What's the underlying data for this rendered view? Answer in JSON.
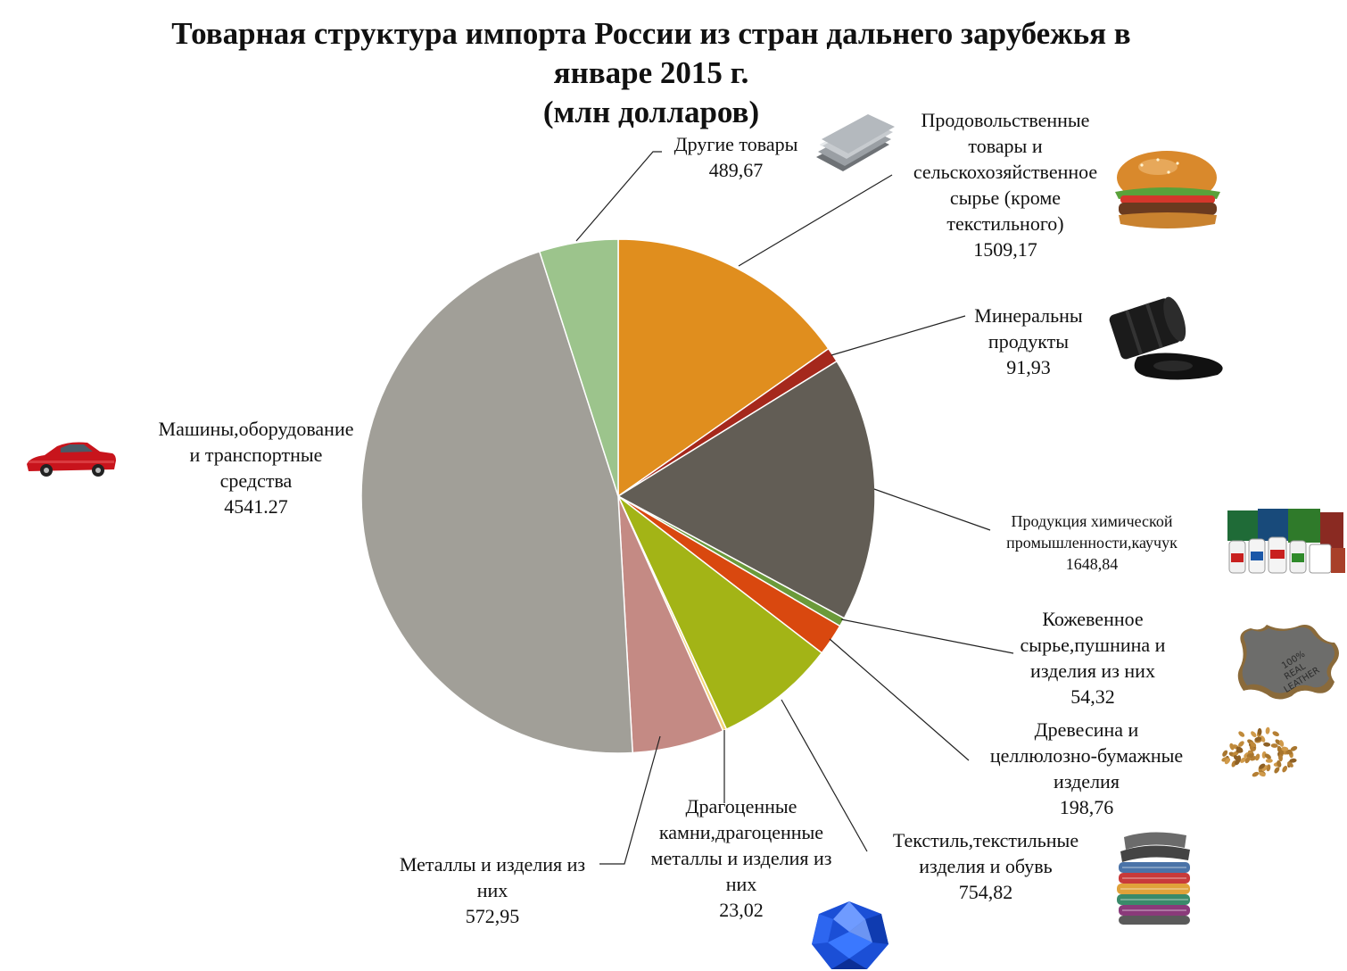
{
  "title": {
    "line1": "Товарная структура импорта России из стран дальнего зарубежья  в",
    "line2": "январе 2015 г.",
    "line3": "(млн долларов)"
  },
  "chart_data": {
    "type": "pie",
    "start_angle_deg": 0,
    "direction": "clockwise",
    "slices": [
      {
        "label_lines": [
          "Продовольственные",
          "товары и",
          "сельскохозяйственное",
          "сырье (кроме",
          "текстильного)"
        ],
        "value": 1509.17,
        "value_text": "1509,17",
        "color": "#E08E1E",
        "icon": "burger-icon"
      },
      {
        "label_lines": [
          "Минеральны",
          "продукты"
        ],
        "value": 91.93,
        "value_text": "91,93",
        "color": "#A5281C",
        "icon": "oil-barrel-icon"
      },
      {
        "label_lines": [
          "Продукция химической",
          "промышленности,каучук"
        ],
        "value": 1648.84,
        "value_text": "1648,84",
        "color": "#625D55",
        "icon": "chemical-bottles-icon"
      },
      {
        "label_lines": [
          "Кожевенное",
          "сырье,пушнина и",
          "изделия из них"
        ],
        "value": 54.32,
        "value_text": "54,32",
        "color": "#6B9A3A",
        "icon": "leather-icon"
      },
      {
        "label_lines": [
          "Древесина и",
          "целлюлозно-бумажные",
          "изделия"
        ],
        "value": 198.76,
        "value_text": "198,76",
        "color": "#D9480F",
        "icon": "wood-pellets-icon"
      },
      {
        "label_lines": [
          "Текстиль,текстильные",
          "изделия и обувь"
        ],
        "value": 754.82,
        "value_text": "754,82",
        "color": "#A3B416",
        "icon": "textile-stack-icon"
      },
      {
        "label_lines": [
          "Драгоценные",
          "камни,драгоценные",
          "металлы и изделия из",
          "них"
        ],
        "value": 23.02,
        "value_text": "23,02",
        "color": "#F3D57A",
        "icon": "gem-icon"
      },
      {
        "label_lines": [
          "Металлы и изделия из",
          "них"
        ],
        "value": 572.95,
        "value_text": "572,95",
        "color": "#C48A84",
        "icon": "steel-plates-icon"
      },
      {
        "label_lines": [
          "Машины,оборудование",
          "и транспортные",
          "средства"
        ],
        "value": 4541.27,
        "value_text": "4541.27",
        "color": "#A19F98",
        "icon": "car-icon"
      },
      {
        "label_lines": [
          "Другие товары"
        ],
        "value": 489.67,
        "value_text": "489,67",
        "color": "#9CC48C",
        "icon": ""
      }
    ]
  }
}
